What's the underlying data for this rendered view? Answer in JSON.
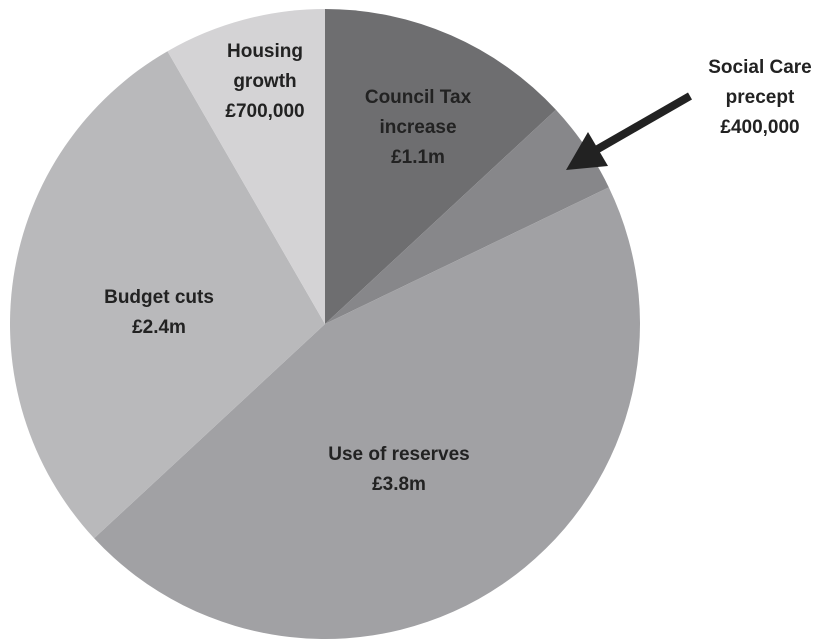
{
  "chart_data": {
    "type": "pie",
    "slices": [
      {
        "lines": [
          "Council Tax",
          "increase",
          "£1.1m"
        ],
        "value": 1.1,
        "color": "#6e6e70"
      },
      {
        "lines": [
          "Social Care",
          "precept",
          "£400,000"
        ],
        "value": 0.4,
        "color": "#87878a"
      },
      {
        "lines": [
          "Use of reserves",
          "£3.8m"
        ],
        "value": 3.8,
        "color": "#a1a1a4"
      },
      {
        "lines": [
          "Budget cuts",
          "£2.4m"
        ],
        "value": 2.4,
        "color": "#b9b9bb"
      },
      {
        "lines": [
          "Housing",
          "growth",
          "£700,000"
        ],
        "value": 0.7,
        "color": "#d4d3d5"
      }
    ],
    "units": "£m",
    "legend": "none",
    "colors": {
      "label": "#222222",
      "arrow": "#222222"
    }
  }
}
